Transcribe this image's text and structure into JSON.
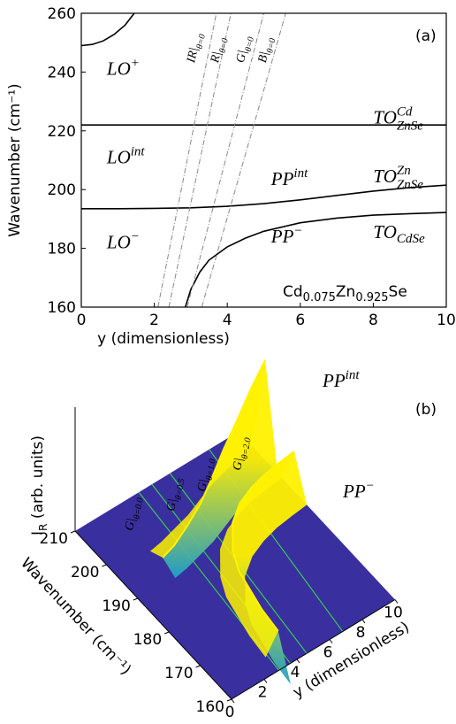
{
  "chart_data": [
    {
      "type": "line",
      "panel_label": "(a)",
      "xlabel": "y (dimensionless)",
      "ylabel": "Wavenumber (cm⁻¹)",
      "xlim": [
        0,
        10
      ],
      "ylim": [
        160,
        260
      ],
      "xticks": [
        0,
        2,
        4,
        6,
        8,
        10
      ],
      "yticks": [
        160,
        180,
        200,
        220,
        240,
        260
      ],
      "series": [
        {
          "color": "#000000",
          "linestyle": "solid",
          "x": [
            0,
            0.3,
            0.6,
            0.9,
            1.2,
            1.45
          ],
          "values": [
            249,
            249.4,
            250.6,
            252.8,
            256,
            260
          ]
        },
        {
          "color": "#000000",
          "linestyle": "solid",
          "x": [
            0,
            10
          ],
          "values": [
            222,
            222
          ]
        },
        {
          "color": "#000000",
          "linestyle": "solid",
          "x": [
            0,
            1,
            2,
            3,
            4,
            5,
            6,
            7,
            8,
            9,
            10
          ],
          "values": [
            193.5,
            193.5,
            193.6,
            193.8,
            194.3,
            195.2,
            196.5,
            198,
            199.5,
            200.7,
            201.5
          ]
        },
        {
          "color": "#000000",
          "linestyle": "solid",
          "x": [
            2.85,
            3,
            3.25,
            3.5,
            4,
            4.5,
            5,
            6,
            7,
            8,
            9,
            10
          ],
          "values": [
            160,
            166,
            172,
            176,
            180.5,
            183.5,
            185.8,
            188.7,
            190.3,
            191.3,
            191.8,
            192.2
          ]
        },
        {
          "color": "#888888",
          "linestyle": "dashdot",
          "x": [
            2.1,
            3.7
          ],
          "values": [
            160,
            260
          ]
        },
        {
          "color": "#888888",
          "linestyle": "dashdot",
          "x": [
            2.4,
            4.1
          ],
          "values": [
            160,
            260
          ]
        },
        {
          "color": "#888888",
          "linestyle": "dashdot",
          "x": [
            2.9,
            5.0
          ],
          "values": [
            160,
            260
          ]
        },
        {
          "color": "#888888",
          "linestyle": "dashdot",
          "x": [
            3.3,
            5.6
          ],
          "values": [
            160,
            260
          ]
        }
      ],
      "annotations": [
        {
          "text": "LO",
          "sup": "+"
        },
        {
          "text": "LO",
          "sup": "int"
        },
        {
          "text": "LO",
          "sup": "−"
        },
        {
          "text": "TO",
          "sup": "Cd",
          "sub": "ZnSe"
        },
        {
          "text": "TO",
          "sup": "Zn",
          "sub": "ZnSe"
        },
        {
          "text": "TO",
          "sub": "CdSe"
        },
        {
          "text": "PP",
          "sup": "int"
        },
        {
          "text": "PP",
          "sup": "−"
        },
        {
          "text": "IR|",
          "sub": "θ=0"
        },
        {
          "text": "R|",
          "sub": "θ=0"
        },
        {
          "text": "G|",
          "sub": "θ=0"
        },
        {
          "text": "B|",
          "sub": "θ=0"
        }
      ],
      "material": [
        "Cd",
        "0.075",
        "Zn",
        "0.925",
        "Se"
      ]
    },
    {
      "type": "surface3d",
      "panel_label": "(b)",
      "xlabel": "y (dimensionless)",
      "ylabel": "Wavenumber (cm⁻¹)",
      "zlabel": {
        "text": "I",
        "sub": "R",
        "after": " (arb. units)"
      },
      "xlim": [
        0,
        10
      ],
      "ylim": [
        160,
        210
      ],
      "xticks": [
        0,
        2,
        4,
        6,
        8,
        10
      ],
      "yticks": [
        160,
        170,
        180,
        190,
        200,
        210
      ],
      "floor_color": "#3a2f9e",
      "ridges": [
        {
          "color": "#fff200",
          "edge_color": "#1fa0c8",
          "x": [
            2.2,
            3,
            4,
            5,
            6,
            7,
            8,
            9,
            10
          ],
          "values": [
            193.5,
            194,
            195,
            196,
            197.5,
            199,
            200,
            201,
            201.5
          ]
        },
        {
          "color": "#fff200",
          "edge_color": "#1fa0c8",
          "x": [
            2.85,
            3,
            3.5,
            4,
            5,
            6,
            7,
            8,
            9,
            10
          ],
          "values": [
            160,
            166,
            176,
            180.5,
            185.8,
            188.7,
            190.3,
            191.3,
            191.8,
            192.2
          ]
        }
      ],
      "lines": [
        {
          "color": "#33cc55",
          "x": [
            2.9,
            3.9
          ],
          "values": [
            160,
            210
          ]
        },
        {
          "color": "#33cc55",
          "x": [
            3.6,
            4.7
          ],
          "values": [
            160,
            210
          ]
        },
        {
          "color": "#33cc55",
          "x": [
            4.6,
            5.8
          ],
          "values": [
            160,
            210
          ]
        },
        {
          "color": "#33cc55",
          "x": [
            6.8,
            8.2
          ],
          "values": [
            160,
            210
          ]
        }
      ],
      "annotations": [
        {
          "text": "G|",
          "sub": "θ=0.0"
        },
        {
          "text": "G|",
          "sub": "θ=0.5"
        },
        {
          "text": "G|",
          "sub": "θ=1.0"
        },
        {
          "text": "G|",
          "sub": "θ=2.0"
        },
        {
          "text": "PP",
          "sup": "int"
        },
        {
          "text": "PP",
          "sup": "−"
        }
      ]
    }
  ]
}
